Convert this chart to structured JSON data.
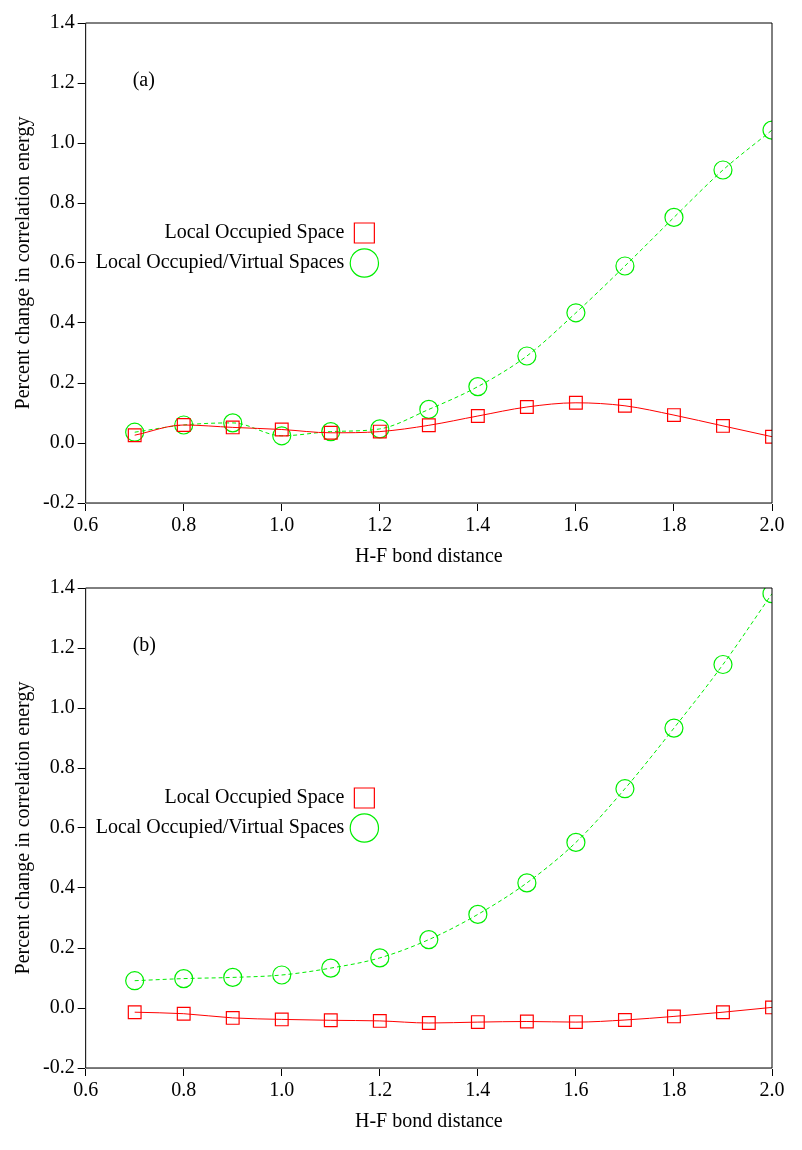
{
  "chart_data": [
    {
      "type": "line",
      "annotations": [
        "(a)"
      ],
      "xlabel": "H-F bond distance",
      "ylabel": "Percent change in correlation energy",
      "x": [
        0.7,
        0.8,
        0.9,
        1.0,
        1.1,
        1.2,
        1.3,
        1.4,
        1.5,
        1.6,
        1.7,
        1.8,
        1.9,
        2.0
      ],
      "xlim": [
        0.6,
        2.0
      ],
      "xticks": [
        {
          "value": 0.6,
          "label": "0.6"
        },
        {
          "value": 0.8,
          "label": "0.8"
        },
        {
          "value": 1.0,
          "label": "1.0"
        },
        {
          "value": 1.2,
          "label": "1.2"
        },
        {
          "value": 1.4,
          "label": "1.4"
        },
        {
          "value": 1.6,
          "label": "1.6"
        },
        {
          "value": 1.8,
          "label": "1.8"
        },
        {
          "value": 2.0,
          "label": "2.0"
        }
      ],
      "ylim": [
        -0.2,
        1.4
      ],
      "yticks": [
        {
          "value": -0.2,
          "label": "-0.2"
        },
        {
          "value": 0.0,
          "label": "0.0"
        },
        {
          "value": 0.2,
          "label": "0.2"
        },
        {
          "value": 0.4,
          "label": "0.4"
        },
        {
          "value": 0.6,
          "label": "0.6"
        },
        {
          "value": 0.8,
          "label": "0.8"
        },
        {
          "value": 1.0,
          "label": "1.0"
        },
        {
          "value": 1.2,
          "label": "1.2"
        },
        {
          "value": 1.4,
          "label": "1.4"
        }
      ],
      "legend": "top",
      "series": [
        {
          "name": "Local Occupied Space",
          "color": "#ff0000",
          "marker": "square",
          "line_style": "solid",
          "values": [
            0.026,
            0.06,
            0.052,
            0.045,
            0.034,
            0.038,
            0.059,
            0.09,
            0.12,
            0.134,
            0.124,
            0.093,
            0.057,
            0.021
          ]
        },
        {
          "name": "Local Occupied/Virtual Spaces",
          "color": "#00ee00",
          "marker": "circle",
          "line_style": "dashed",
          "values": [
            0.036,
            0.06,
            0.067,
            0.024,
            0.038,
            0.047,
            0.112,
            0.188,
            0.29,
            0.434,
            0.59,
            0.752,
            0.91,
            1.043
          ]
        }
      ]
    },
    {
      "type": "line",
      "annotations": [
        "(b)"
      ],
      "xlabel": "H-F bond distance",
      "ylabel": "Percent change in correlation energy",
      "x": [
        0.7,
        0.8,
        0.9,
        1.0,
        1.1,
        1.2,
        1.3,
        1.4,
        1.5,
        1.6,
        1.7,
        1.8,
        1.9,
        2.0
      ],
      "xlim": [
        0.6,
        2.0
      ],
      "xticks": [
        {
          "value": 0.6,
          "label": "0.6"
        },
        {
          "value": 0.8,
          "label": "0.8"
        },
        {
          "value": 1.0,
          "label": "1.0"
        },
        {
          "value": 1.2,
          "label": "1.2"
        },
        {
          "value": 1.4,
          "label": "1.4"
        },
        {
          "value": 1.6,
          "label": "1.6"
        },
        {
          "value": 1.8,
          "label": "1.8"
        },
        {
          "value": 2.0,
          "label": "2.0"
        }
      ],
      "ylim": [
        -0.2,
        1.4
      ],
      "yticks": [
        {
          "value": -0.2,
          "label": "-0.2"
        },
        {
          "value": 0.0,
          "label": "0.0"
        },
        {
          "value": 0.2,
          "label": "0.2"
        },
        {
          "value": 0.4,
          "label": "0.4"
        },
        {
          "value": 0.6,
          "label": "0.6"
        },
        {
          "value": 0.8,
          "label": "0.8"
        },
        {
          "value": 1.0,
          "label": "1.0"
        },
        {
          "value": 1.2,
          "label": "1.2"
        },
        {
          "value": 1.4,
          "label": "1.4"
        }
      ],
      "legend": "top",
      "series": [
        {
          "name": "Local Occupied Space",
          "color": "#ff0000",
          "marker": "square",
          "line_style": "solid",
          "values": [
            -0.014,
            -0.019,
            -0.033,
            -0.038,
            -0.041,
            -0.043,
            -0.05,
            -0.047,
            -0.045,
            -0.047,
            -0.04,
            -0.028,
            -0.014,
            0.002
          ]
        },
        {
          "name": "Local Occupied/Virtual Spaces",
          "color": "#00ee00",
          "marker": "circle",
          "line_style": "dashed",
          "values": [
            0.091,
            0.098,
            0.102,
            0.11,
            0.133,
            0.167,
            0.228,
            0.312,
            0.417,
            0.552,
            0.731,
            0.933,
            1.145,
            1.381
          ]
        }
      ]
    }
  ]
}
